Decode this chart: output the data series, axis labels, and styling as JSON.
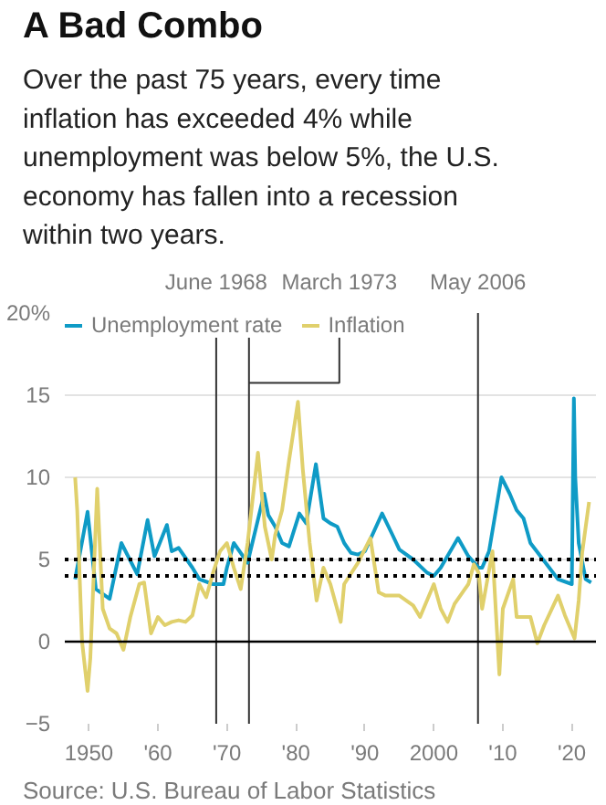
{
  "chart_data": {
    "type": "line",
    "title": "A Bad Combo",
    "subtitle": "Over the past 75 years, every time inflation has exceeded 4% while unemployment was below 5%, the U.S. economy has fallen into a recession within two years.",
    "annotations": [
      "Source: U.S. Bureau of Labor Statistics"
    ],
    "legend": "top left",
    "grid": "y",
    "xlim": [
      1946.5,
      2023.5
    ],
    "ylim": [
      -5,
      20
    ],
    "xticks": [
      {
        "value": 1950,
        "label": "1950"
      },
      {
        "value": 1960,
        "label": "'60"
      },
      {
        "value": 1970,
        "label": "'70"
      },
      {
        "value": 1980,
        "label": "'80"
      },
      {
        "value": 1990,
        "label": "'90"
      },
      {
        "value": 2000,
        "label": "2000"
      },
      {
        "value": 2010,
        "label": "'10"
      },
      {
        "value": 2020,
        "label": "'20"
      }
    ],
    "yticks": [
      -5,
      0,
      5,
      10,
      15,
      {
        "value": 20,
        "label": "20%"
      }
    ],
    "ref_lines": [
      {
        "axis": "x",
        "value": 1968.45,
        "label": "June 1968",
        "color": "#333333",
        "line_style": "solid"
      },
      {
        "axis": "x",
        "value": 1973.2,
        "label": "March 1973",
        "color": "#333333",
        "line_style": "solid"
      },
      {
        "axis": "x",
        "value": 2006.4,
        "label": "May 2006",
        "color": "#333333",
        "line_style": "solid"
      },
      {
        "axis": "y",
        "value": 0,
        "color": "#000000",
        "line_style": "solid"
      },
      {
        "axis": "y",
        "value": 5,
        "color": "#000000",
        "line_style": "dotted"
      },
      {
        "axis": "y",
        "value": 4,
        "color": "#000000",
        "line_style": "dotted"
      }
    ],
    "series": [
      {
        "name": "Unemployment rate",
        "color": "#0f9bc6",
        "x": [
          1948,
          1949.8,
          1951,
          1953,
          1954.7,
          1957,
          1958.5,
          1959.5,
          1961.3,
          1962,
          1963,
          1965,
          1966,
          1968,
          1969.5,
          1970,
          1971,
          1973,
          1975.4,
          1976,
          1977,
          1978,
          1979,
          1980.5,
          1981.5,
          1982.9,
          1984,
          1985,
          1986,
          1987,
          1988,
          1989,
          1990,
          1992.5,
          1994,
          1995,
          1997,
          1999,
          2000,
          2001,
          2003.5,
          2005,
          2006.5,
          2007,
          2008,
          2009.8,
          2011,
          2012,
          2013,
          2014,
          2016,
          2018,
          2020,
          2020.3,
          2020.5,
          2021,
          2022,
          2022.8
        ],
        "values": [
          3.8,
          7.9,
          3.2,
          2.6,
          6.0,
          4.1,
          7.4,
          5.2,
          7.1,
          5.5,
          5.7,
          4.5,
          3.8,
          3.5,
          3.5,
          4.5,
          6.0,
          4.8,
          9.0,
          7.7,
          7.0,
          6.0,
          5.8,
          7.8,
          7.2,
          10.8,
          7.5,
          7.2,
          7.0,
          6.0,
          5.4,
          5.3,
          5.5,
          7.8,
          6.5,
          5.6,
          5.0,
          4.2,
          4.0,
          4.5,
          6.3,
          5.2,
          4.5,
          4.5,
          5.5,
          10.0,
          9.0,
          8.0,
          7.5,
          6.0,
          4.9,
          3.8,
          3.5,
          14.8,
          10.0,
          6.0,
          3.8,
          3.6
        ]
      },
      {
        "name": "Inflation",
        "color": "#e0d06c",
        "x": [
          1948,
          1948.3,
          1949,
          1949.8,
          1950.2,
          1951.2,
          1952,
          1953,
          1954,
          1955,
          1956,
          1957.3,
          1958,
          1959,
          1960,
          1961,
          1962,
          1963,
          1964,
          1965,
          1966,
          1967,
          1968,
          1969,
          1970,
          1971,
          1972,
          1973,
          1974.5,
          1975.5,
          1976.5,
          1977,
          1978,
          1979,
          1980.3,
          1981,
          1982,
          1983,
          1984,
          1985,
          1986.5,
          1987,
          1989,
          1990.8,
          1992,
          1993,
          1995,
          1997,
          1998,
          2000,
          2001,
          2002,
          2003,
          2005,
          2005.8,
          2006.5,
          2007,
          2008.5,
          2009.5,
          2010,
          2011.5,
          2012,
          2013,
          2014,
          2015,
          2016,
          2018,
          2019,
          2020.4,
          2021,
          2021.5,
          2022.5
        ],
        "values": [
          10.0,
          8.0,
          0.0,
          -3.0,
          -1.0,
          9.3,
          2.0,
          0.8,
          0.5,
          -0.5,
          1.5,
          3.5,
          3.6,
          0.5,
          1.5,
          1.0,
          1.2,
          1.3,
          1.2,
          1.6,
          3.5,
          2.7,
          4.2,
          5.5,
          6.0,
          4.5,
          3.2,
          6.0,
          11.5,
          7.0,
          5.0,
          6.5,
          8.0,
          11.0,
          14.6,
          10.5,
          6.0,
          2.5,
          4.5,
          3.5,
          1.2,
          3.5,
          4.8,
          6.3,
          3.0,
          2.8,
          2.8,
          2.2,
          1.5,
          3.5,
          2.0,
          1.2,
          2.3,
          3.5,
          4.7,
          4.2,
          2.0,
          5.5,
          -2.0,
          2.0,
          3.8,
          1.5,
          1.5,
          1.5,
          -0.1,
          1.0,
          2.8,
          1.6,
          0.2,
          2.5,
          5.4,
          8.5
        ]
      }
    ]
  }
}
